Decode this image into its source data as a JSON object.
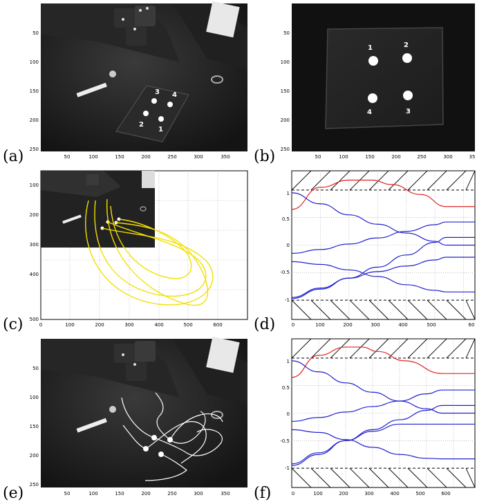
{
  "panels": [
    {
      "id": "a",
      "label": "(a)",
      "yticks": [
        "50",
        "100",
        "150",
        "200",
        "250"
      ],
      "xticks": [
        "50",
        "100",
        "150",
        "200",
        "250",
        "300",
        "350"
      ],
      "point_labels": [
        "1",
        "2",
        "3",
        "4"
      ]
    },
    {
      "id": "b",
      "label": "(b)",
      "yticks": [
        "50",
        "100",
        "150",
        "200",
        "250"
      ],
      "xticks": [
        "50",
        "100",
        "150",
        "200",
        "250",
        "300",
        "35"
      ],
      "point_labels": [
        "1",
        "2",
        "3",
        "4"
      ]
    },
    {
      "id": "c",
      "label": "(c)",
      "yticks": [
        "100",
        "200",
        "300",
        "400",
        "500"
      ],
      "xticks": [
        "0",
        "100",
        "200",
        "300",
        "400",
        "500",
        "600"
      ]
    },
    {
      "id": "d",
      "label": "(d)",
      "yticks": [
        "1",
        "0.5",
        "0",
        "-0.5",
        "-1"
      ],
      "xticks": [
        "0",
        "100",
        "200",
        "300",
        "400",
        "500",
        "60"
      ]
    },
    {
      "id": "e",
      "label": "(e)",
      "yticks": [
        "50",
        "100",
        "150",
        "200",
        "250"
      ],
      "xticks": [
        "50",
        "100",
        "150",
        "200",
        "250",
        "300",
        "350"
      ]
    },
    {
      "id": "f",
      "label": "(f)",
      "yticks": [
        "1",
        "0.5",
        "0",
        "-0.5",
        "-1"
      ],
      "xticks": [
        "0",
        "100",
        "200",
        "300",
        "400",
        "500",
        "600"
      ]
    }
  ],
  "chart_data": [
    {
      "type": "line",
      "panel": "d",
      "x_range": [
        0,
        640
      ],
      "y_range": [
        -1.35,
        1.35
      ],
      "bounds": [
        1,
        -1
      ],
      "series": [
        {
          "color": "#e02020",
          "points": [
            [
              0,
              0.65
            ],
            [
              100,
              1.05
            ],
            [
              200,
              1.18
            ],
            [
              280,
              1.18
            ],
            [
              350,
              1.1
            ],
            [
              450,
              0.92
            ],
            [
              540,
              0.7
            ],
            [
              640,
              0.7
            ]
          ]
        },
        {
          "color": "#2020d0",
          "points": [
            [
              0,
              0.95
            ],
            [
              100,
              0.75
            ],
            [
              200,
              0.55
            ],
            [
              300,
              0.38
            ],
            [
              400,
              0.22
            ],
            [
              500,
              0.07
            ],
            [
              540,
              0.0
            ],
            [
              640,
              0.0
            ]
          ]
        },
        {
          "color": "#2020d0",
          "points": [
            [
              0,
              -0.15
            ],
            [
              100,
              -0.08
            ],
            [
              200,
              0.02
            ],
            [
              300,
              0.13
            ],
            [
              400,
              0.25
            ],
            [
              500,
              0.37
            ],
            [
              540,
              0.42
            ],
            [
              640,
              0.42
            ]
          ]
        },
        {
          "color": "#2020d0",
          "points": [
            [
              0,
              -0.3
            ],
            [
              100,
              -0.35
            ],
            [
              200,
              -0.45
            ],
            [
              300,
              -0.57
            ],
            [
              400,
              -0.72
            ],
            [
              500,
              -0.82
            ],
            [
              540,
              -0.85
            ],
            [
              640,
              -0.85
            ]
          ]
        },
        {
          "color": "#2020d0",
          "points": [
            [
              0,
              -0.95
            ],
            [
              100,
              -0.78
            ],
            [
              200,
              -0.6
            ],
            [
              300,
              -0.48
            ],
            [
              400,
              -0.38
            ],
            [
              500,
              -0.27
            ],
            [
              540,
              -0.22
            ],
            [
              640,
              -0.22
            ]
          ]
        },
        {
          "color": "#2020d0",
          "points": [
            [
              0,
              -0.97
            ],
            [
              100,
              -0.8
            ],
            [
              200,
              -0.6
            ],
            [
              300,
              -0.4
            ],
            [
              400,
              -0.18
            ],
            [
              500,
              0.05
            ],
            [
              540,
              0.14
            ],
            [
              640,
              0.14
            ]
          ]
        }
      ]
    },
    {
      "type": "line",
      "panel": "f",
      "x_range": [
        0,
        680
      ],
      "y_range": [
        -1.35,
        1.35
      ],
      "bounds": [
        1,
        -1
      ],
      "series": [
        {
          "color": "#e02020",
          "points": [
            [
              0,
              0.65
            ],
            [
              100,
              1.05
            ],
            [
              200,
              1.2
            ],
            [
              260,
              1.2
            ],
            [
              320,
              1.12
            ],
            [
              420,
              0.95
            ],
            [
              560,
              0.72
            ],
            [
              680,
              0.72
            ]
          ]
        },
        {
          "color": "#2020d0",
          "points": [
            [
              0,
              0.95
            ],
            [
              100,
              0.75
            ],
            [
              200,
              0.55
            ],
            [
              300,
              0.38
            ],
            [
              400,
              0.22
            ],
            [
              500,
              0.08
            ],
            [
              560,
              0.0
            ],
            [
              680,
              0.0
            ]
          ]
        },
        {
          "color": "#2020d0",
          "points": [
            [
              0,
              -0.15
            ],
            [
              100,
              -0.08
            ],
            [
              200,
              0.02
            ],
            [
              300,
              0.12
            ],
            [
              400,
              0.22
            ],
            [
              500,
              0.35
            ],
            [
              560,
              0.42
            ],
            [
              680,
              0.42
            ]
          ]
        },
        {
          "color": "#2020d0",
          "points": [
            [
              0,
              -0.3
            ],
            [
              100,
              -0.35
            ],
            [
              200,
              -0.48
            ],
            [
              300,
              -0.62
            ],
            [
              400,
              -0.75
            ],
            [
              500,
              -0.82
            ],
            [
              560,
              -0.83
            ],
            [
              680,
              -0.83
            ]
          ]
        },
        {
          "color": "#2020d0",
          "points": [
            [
              0,
              -0.92
            ],
            [
              100,
              -0.72
            ],
            [
              200,
              -0.5
            ],
            [
              300,
              -0.33
            ],
            [
              400,
              -0.2
            ],
            [
              500,
              -0.2
            ],
            [
              560,
              -0.2
            ],
            [
              680,
              -0.2
            ]
          ]
        },
        {
          "color": "#2020d0",
          "points": [
            [
              0,
              -0.95
            ],
            [
              100,
              -0.75
            ],
            [
              200,
              -0.5
            ],
            [
              300,
              -0.3
            ],
            [
              400,
              -0.12
            ],
            [
              500,
              0.05
            ],
            [
              560,
              0.14
            ],
            [
              680,
              0.14
            ]
          ]
        }
      ]
    }
  ]
}
